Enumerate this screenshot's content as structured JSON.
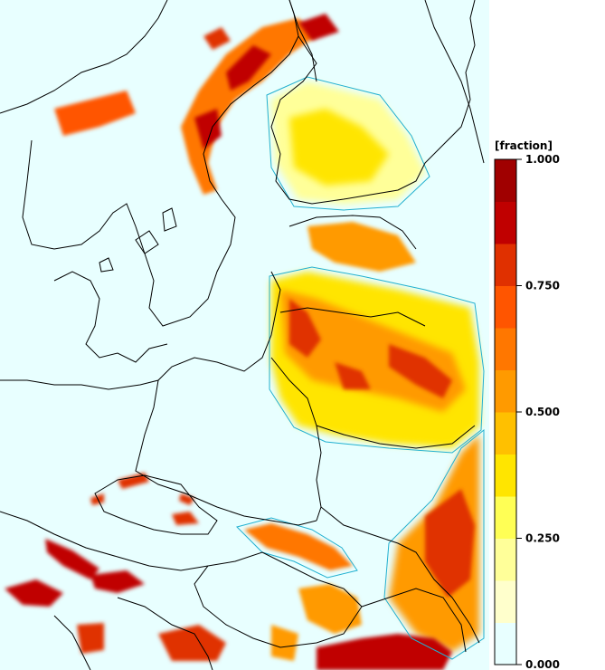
{
  "legend": {
    "unit_label": "[fraction]",
    "ticks": [
      {
        "value": 1.0,
        "label": "1.000"
      },
      {
        "value": 0.75,
        "label": "0.750"
      },
      {
        "value": 0.5,
        "label": "0.500"
      },
      {
        "value": 0.25,
        "label": "0.250"
      },
      {
        "value": 0.0,
        "label": "0.000"
      }
    ],
    "colors": [
      "#e8ffff",
      "#ffffcc",
      "#ffff99",
      "#ffff55",
      "#ffe500",
      "#ffc000",
      "#ff9a00",
      "#ff7700",
      "#ff5500",
      "#e03000",
      "#c00000",
      "#a00000"
    ]
  },
  "map": {
    "ocean_color": "#e8ffff",
    "outline_color": "#000000",
    "contour_color": "#22b0d0"
  }
}
